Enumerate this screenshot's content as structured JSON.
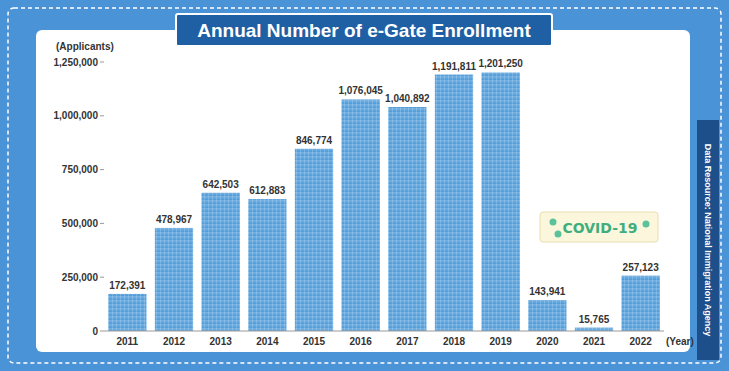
{
  "chart_data": {
    "type": "bar",
    "title": "Annual Number of e-Gate Enrollment",
    "ylabel": "(Applicants)",
    "xlabel": "(Year)",
    "source": "Data Resource: National Immigration Agency",
    "annotation": "COVID-19",
    "categories": [
      "2011",
      "2012",
      "2013",
      "2014",
      "2015",
      "2016",
      "2017",
      "2018",
      "2019",
      "2020",
      "2021",
      "2022"
    ],
    "values": [
      172391,
      478967,
      642503,
      612883,
      846774,
      1076045,
      1040892,
      1191811,
      1201250,
      143941,
      15765,
      257123
    ],
    "value_labels": [
      "172,391",
      "478,967",
      "642,503",
      "612,883",
      "846,774",
      "1,076,045",
      "1,040,892",
      "1,191,811",
      "1,201,250",
      "143,941",
      "15,765",
      "257,123"
    ],
    "color": "#4d9ad9",
    "ylim": [
      0,
      1250000
    ],
    "yticks": [
      0,
      {
        "value": 250000,
        "label": "250,000"
      },
      {
        "value": 500000,
        "label": "500,000"
      },
      {
        "value": 750000,
        "label": "750,000"
      },
      {
        "value": 1000000,
        "label": "1,000,000"
      },
      {
        "value": 1250000,
        "label": "1,250,000"
      }
    ],
    "grid": false,
    "data_labels": true
  }
}
